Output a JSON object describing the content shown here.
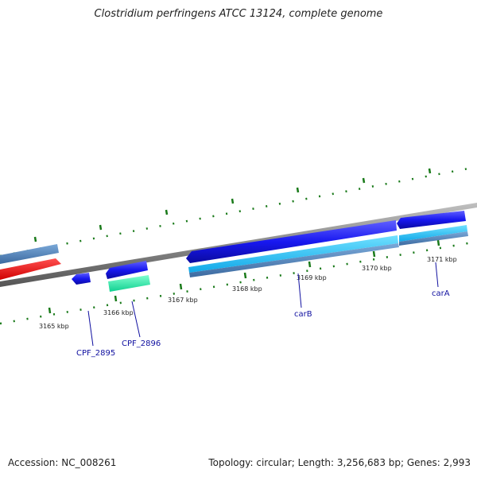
{
  "title": "Clostridium perfringens ATCC 13124, complete genome",
  "footer": {
    "accession": "Accession: NC_008261",
    "summary": "Topology: circular; Length: 3,256,683 bp; Genes: 2,993"
  },
  "colors": {
    "backbone": "#8a8a8a",
    "tick": "#1a7a1a",
    "label_line": "#1010a0",
    "gene_text": "#1010a0"
  },
  "tick_labels": [
    "3165 kbp",
    "3166 kbp",
    "3167 kbp",
    "3168 kbp",
    "3169 kbp",
    "3170 kbp",
    "3171 kbp"
  ],
  "gene_labels": [
    "CPF_2895",
    "CPF_2896",
    "carB",
    "carA"
  ]
}
